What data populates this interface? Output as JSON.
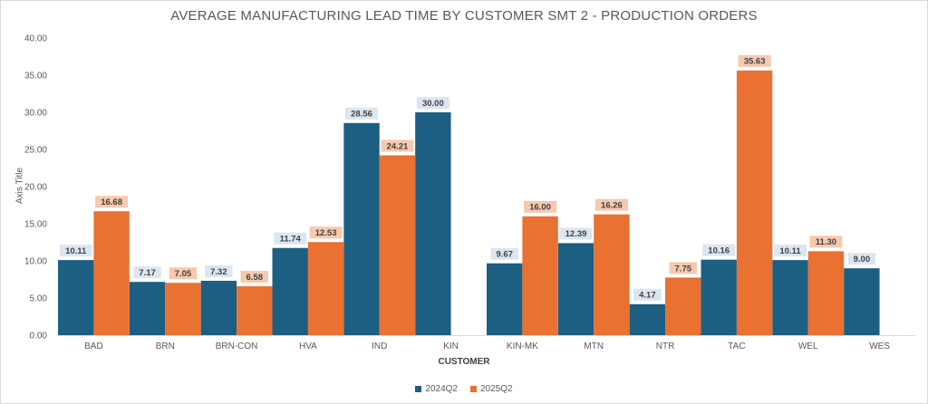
{
  "chart_data": {
    "type": "bar",
    "title": "AVERAGE MANUFACTURING LEAD TIME BY CUSTOMER SMT 2 - PRODUCTION ORDERS",
    "xlabel": "CUSTOMER",
    "ylabel": "Axis Title",
    "ylim": [
      0,
      40
    ],
    "yticks": [
      "0.00",
      "5.00",
      "10.00",
      "15.00",
      "20.00",
      "25.00",
      "30.00",
      "35.00",
      "40.00"
    ],
    "grid": false,
    "legend_position": "bottom",
    "categories": [
      "BAD",
      "BRN",
      "BRN-CON",
      "HVA",
      "IND",
      "KIN",
      "KIN-MK",
      "MTN",
      "NTR",
      "TAC",
      "WEL",
      "WES"
    ],
    "series": [
      {
        "name": "2024Q2",
        "color": "#1c5f82",
        "label_bg": "#dce6f1",
        "values": [
          10.11,
          7.17,
          7.32,
          11.74,
          28.56,
          30.0,
          9.67,
          12.39,
          4.17,
          10.16,
          10.11,
          9.0
        ],
        "labels": [
          "10.11",
          "7.17",
          "7.32",
          "11.74",
          "28.56",
          "30.00",
          "9.67",
          "12.39",
          "4.17",
          "10.16",
          "10.11",
          "9.00"
        ]
      },
      {
        "name": "2025Q2",
        "color": "#e97132",
        "label_bg": "#f7c9ae",
        "values": [
          16.68,
          7.05,
          6.58,
          12.53,
          24.21,
          null,
          16.0,
          16.26,
          7.75,
          35.63,
          11.3,
          null
        ],
        "labels": [
          "16.68",
          "7.05",
          "6.58",
          "12.53",
          "24.21",
          null,
          "16.00",
          "16.26",
          "7.75",
          "35.63",
          "11.30",
          null
        ]
      }
    ]
  }
}
